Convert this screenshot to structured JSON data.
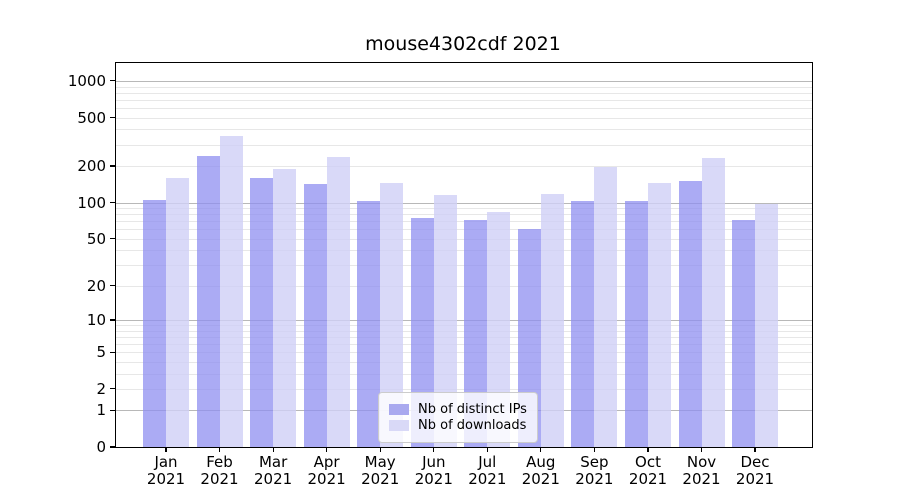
{
  "style": {
    "background": "#ffffff",
    "spine_color": "#000000",
    "grid_major_color": "#b8b8b8",
    "grid_minor_color": "#e7e7e7",
    "text_color": "#000000",
    "legend_bg": "rgba(255,255,255,0.8)",
    "legend_border": "#cccccc"
  },
  "chart_data": {
    "type": "bar",
    "title": "mouse4302cdf 2021",
    "categories": [
      "Jan",
      "Feb",
      "Mar",
      "Apr",
      "May",
      "Jun",
      "Jul",
      "Aug",
      "Sep",
      "Oct",
      "Nov",
      "Dec"
    ],
    "x_tick_year": "2021",
    "series": [
      {
        "name": "Nb of distinct IPs",
        "color": "#a9a9ef",
        "bar_fill": "rgba(143,143,240,0.75)",
        "values": [
          104,
          241,
          158,
          142,
          102,
          74,
          72,
          60,
          102,
          103,
          152,
          72
        ]
      },
      {
        "name": "Nb of downloads",
        "color": "#d9d9f7",
        "bar_fill": "rgba(208,208,246,0.8)",
        "values": [
          160,
          352,
          190,
          236,
          144,
          116,
          84,
          117,
          197,
          144,
          232,
          97
        ]
      }
    ],
    "y_scale": "log1p",
    "ylim": [
      0,
      1400
    ],
    "y_ticks": [
      0,
      1,
      2,
      5,
      10,
      20,
      50,
      100,
      200,
      500,
      1000
    ],
    "y_major_gridlines": [
      1,
      10,
      100,
      1000
    ],
    "y_minor_gridlines": [
      2,
      3,
      4,
      5,
      6,
      7,
      8,
      9,
      20,
      30,
      40,
      50,
      60,
      70,
      80,
      90,
      200,
      300,
      400,
      500,
      600,
      700,
      800,
      900
    ],
    "grid": true,
    "legend_position": "lower-center",
    "xlabel": "",
    "ylabel": ""
  }
}
